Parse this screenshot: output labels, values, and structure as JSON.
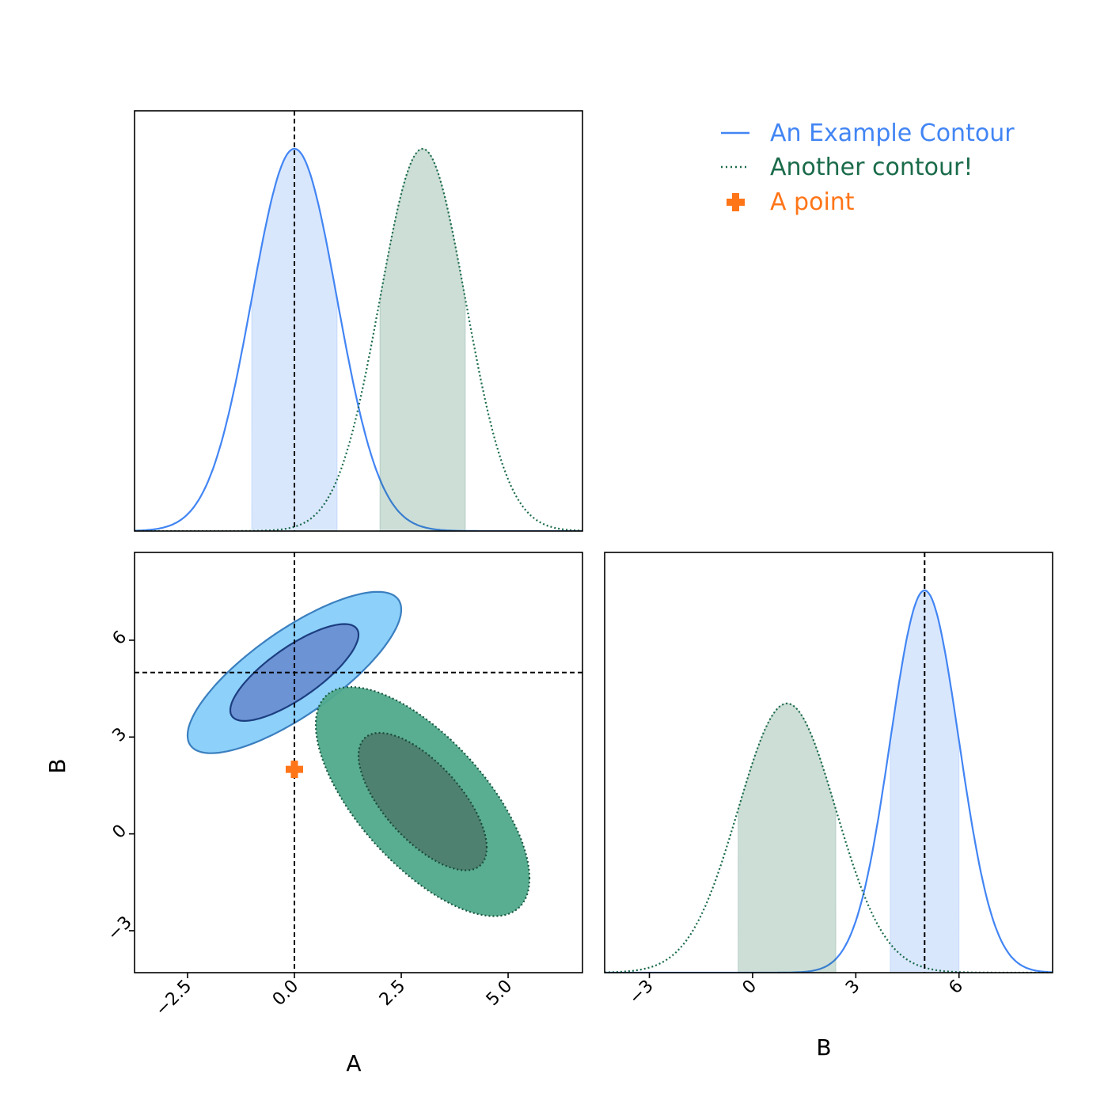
{
  "chart_data": {
    "type": "corner",
    "parameters": [
      "A",
      "B"
    ],
    "axes": {
      "A": {
        "label": "A",
        "range": [
          -3.74,
          6.74
        ],
        "ticks": [
          -2.5,
          0.0,
          2.5,
          5.0
        ],
        "tick_labels": [
          "−2.5",
          "0.0",
          "2.5",
          "5.0"
        ]
      },
      "B": {
        "label": "B",
        "range": [
          -4.3,
          8.72
        ],
        "ticks": [
          -3,
          0,
          3,
          6
        ],
        "tick_labels": [
          "−3",
          "0",
          "3",
          "6"
        ]
      }
    },
    "series": [
      {
        "name": "An Example Contour",
        "color": "#4285f4",
        "line_style": "solid",
        "mean": {
          "A": 0.0,
          "B": 5.0
        },
        "std": {
          "A": 1.0,
          "B": 1.0
        },
        "correlation": 0.78,
        "marginal_interval": {
          "A": [
            -1.0,
            1.0
          ],
          "B": [
            4.0,
            6.0
          ]
        },
        "contour_fill": [
          "#87cefa",
          "#6a8fd1"
        ],
        "contour_edge": [
          "#3a7fbf",
          "#1c3e80"
        ]
      },
      {
        "name": "Another contour!",
        "color": "#1a6b4a",
        "line_style": "dotted",
        "mean": {
          "A": 3.0,
          "B": 1.0
        },
        "std": {
          "A": 1.0,
          "B": 1.42
        },
        "correlation": -0.67,
        "marginal_interval": {
          "A": [
            2.0,
            4.0
          ],
          "B": [
            -0.42,
            2.42
          ]
        },
        "contour_fill": [
          "#50aa8c",
          "#4e7e6e"
        ],
        "contour_edge": [
          "#1a5a40",
          "#1a4a38"
        ]
      }
    ],
    "points": [
      {
        "name": "A point",
        "color": "#ff7518",
        "marker": "plus",
        "A": 0.0,
        "B": 2.0
      }
    ],
    "truth": {
      "A": 0.0,
      "B": 5.0
    },
    "legend": {
      "position": "top-right"
    },
    "grid": false
  }
}
